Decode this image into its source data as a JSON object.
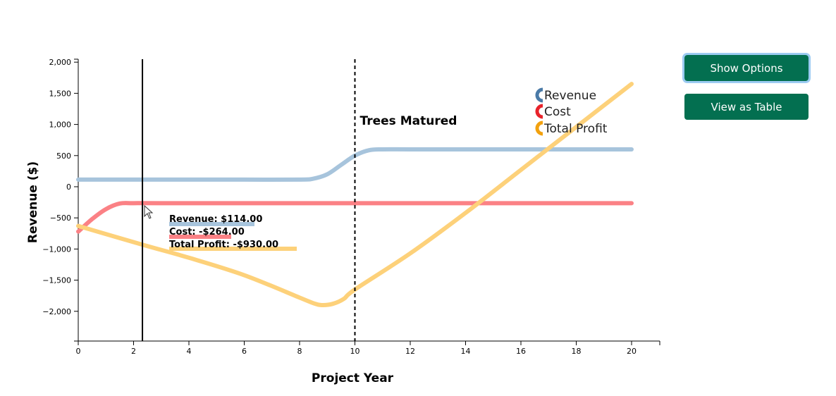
{
  "buttons": {
    "show_options": "Show Options",
    "view_table": "View as Table"
  },
  "chart_data": {
    "type": "line",
    "xlabel": "Project Year",
    "ylabel": "Revenue ($)",
    "xlim": [
      0,
      21
    ],
    "ylim": [
      -2500,
      2100
    ],
    "x_ticks": [
      0,
      2,
      4,
      6,
      8,
      10,
      12,
      14,
      16,
      18,
      20
    ],
    "y_ticks": [
      2000,
      1500,
      1000,
      500,
      0,
      -500,
      -1000,
      -1500,
      -2000
    ],
    "y_tick_labels": [
      "2,000",
      "1,500",
      "1,000",
      "500",
      "0",
      "−500",
      "−1,000",
      "−1,500",
      "−2,000"
    ],
    "series": [
      {
        "name": "Revenue",
        "color": "#a7c4dc",
        "x": [
          0,
          2,
          4,
          6,
          8,
          8.5,
          9,
          9.5,
          10,
          10.5,
          11,
          12,
          14,
          16,
          18,
          20
        ],
        "y": [
          114,
          114,
          114,
          114,
          114,
          130,
          200,
          350,
          500,
          585,
          600,
          600,
          600,
          600,
          600,
          600
        ]
      },
      {
        "name": "Cost",
        "color": "#fb8185",
        "x": [
          0,
          0.5,
          1,
          1.5,
          2,
          3,
          6,
          10,
          14,
          18,
          20
        ],
        "y": [
          -720,
          -520,
          -360,
          -270,
          -264,
          -264,
          -264,
          -264,
          -264,
          -264,
          -264
        ]
      },
      {
        "name": "Total Profit",
        "color": "#fdd17a",
        "x": [
          0,
          2.32,
          4,
          6,
          8,
          8.5,
          8.8,
          9.2,
          9.6,
          10,
          12,
          14,
          16,
          18,
          20
        ],
        "y": [
          -630,
          -930,
          -1140,
          -1420,
          -1780,
          -1870,
          -1900,
          -1880,
          -1800,
          -1650,
          -1070,
          -420,
          270,
          960,
          1650
        ]
      }
    ],
    "annotations": [
      {
        "text": "Trees Matured",
        "x": 10,
        "style": "dashed-vertical-line"
      }
    ],
    "cursor": {
      "x": 2.32,
      "tooltip": [
        {
          "text": "Revenue: $114.00",
          "series": "Revenue",
          "value": 114
        },
        {
          "text": "Cost: -$264.00",
          "series": "Cost",
          "value": -264
        },
        {
          "text": "Total Profit: -$930.00",
          "series": "Total Profit",
          "value": -930
        }
      ]
    },
    "legend": {
      "placement": "top-right",
      "items": [
        {
          "label": "Revenue",
          "color": "#4a7aa7"
        },
        {
          "label": "Cost",
          "color": "#e8232b"
        },
        {
          "label": "Total Profit",
          "color": "#f2a10e"
        }
      ]
    },
    "grid": false
  }
}
